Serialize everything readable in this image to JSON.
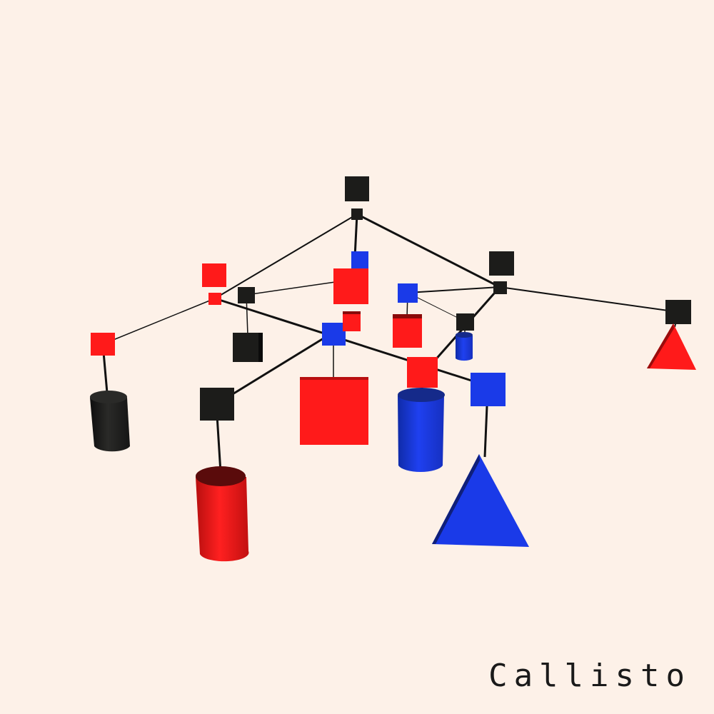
{
  "caption": "Callisto",
  "colors": {
    "background": "#fdf1e8",
    "red": "#ff1a1a",
    "blue": "#1a3ae8",
    "black": "#1c1c1a"
  }
}
